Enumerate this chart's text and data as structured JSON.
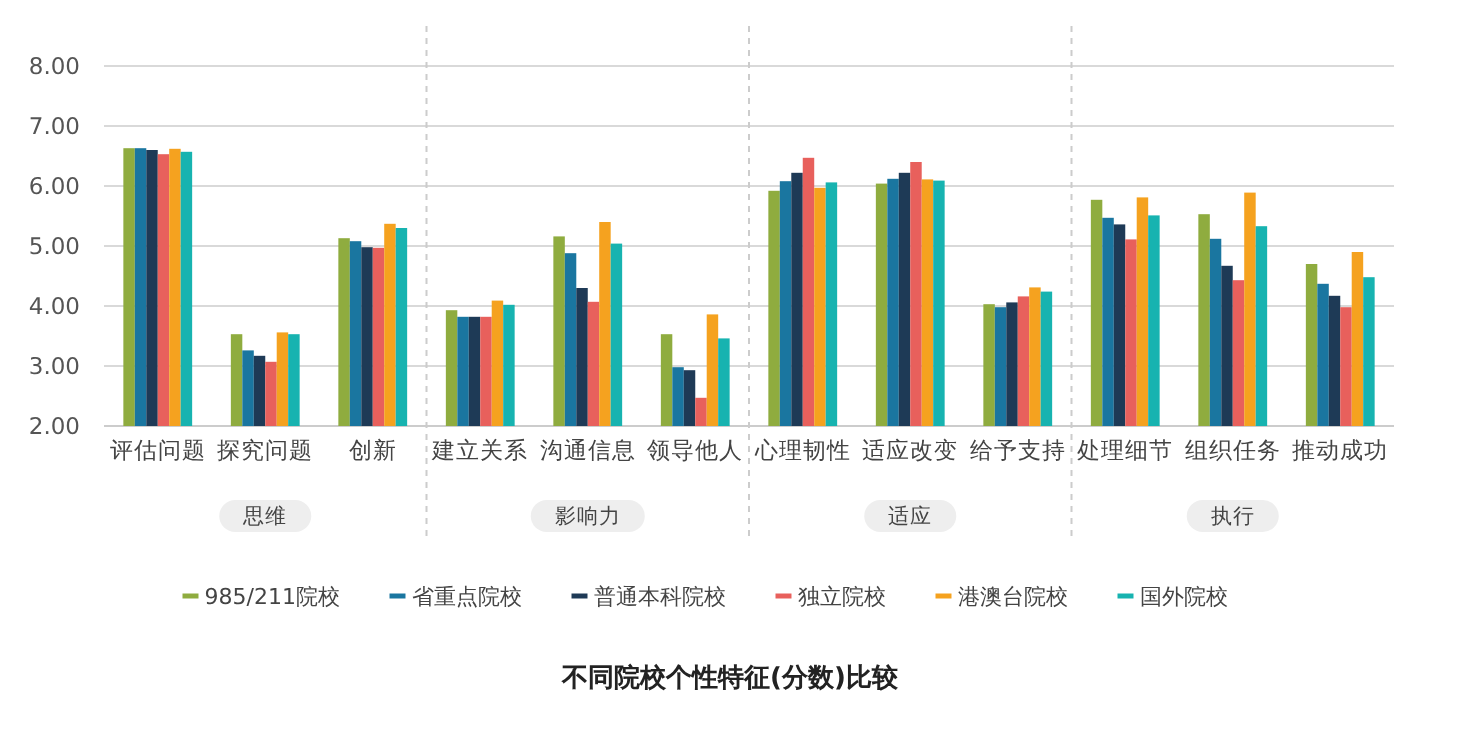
{
  "chart_data": {
    "type": "bar",
    "title": "不同院校个性特征(分数)比较",
    "categories": [
      "评估问题",
      "探究问题",
      "创新",
      "建立关系",
      "沟通信息",
      "领导他人",
      "心理韧性",
      "适应改变",
      "给予支持",
      "处理细节",
      "组织任务",
      "推动成功"
    ],
    "series": [
      {
        "name": "985/211院校",
        "color": "#8fac3f",
        "values": [
          6.63,
          3.53,
          5.13,
          3.93,
          5.16,
          3.53,
          5.92,
          6.04,
          4.03,
          5.77,
          5.53,
          4.7
        ]
      },
      {
        "name": "省重点院校",
        "color": "#1a76a0",
        "values": [
          6.63,
          3.26,
          5.08,
          3.82,
          4.88,
          2.98,
          6.08,
          6.12,
          3.98,
          5.47,
          5.12,
          4.37
        ]
      },
      {
        "name": "普通本科院校",
        "color": "#1e3a56",
        "values": [
          6.6,
          3.17,
          4.98,
          3.82,
          4.3,
          2.93,
          6.22,
          6.22,
          4.06,
          5.36,
          4.67,
          4.17
        ]
      },
      {
        "name": "独立院校",
        "color": "#e8605c",
        "values": [
          6.53,
          3.07,
          4.97,
          3.82,
          4.07,
          2.47,
          6.47,
          6.4,
          4.16,
          5.11,
          4.43,
          3.98
        ]
      },
      {
        "name": "港澳台院校",
        "color": "#f5a21f",
        "values": [
          6.62,
          3.56,
          5.37,
          4.09,
          5.4,
          3.86,
          5.97,
          6.11,
          4.31,
          5.81,
          5.89,
          4.9
        ]
      },
      {
        "name": "国外院校",
        "color": "#17b3b0",
        "values": [
          6.57,
          3.53,
          5.3,
          4.02,
          5.04,
          3.46,
          6.06,
          6.09,
          4.24,
          5.51,
          5.33,
          4.48
        ]
      }
    ],
    "ylim": [
      2,
      8
    ],
    "yticks": [
      {
        "value": 2,
        "label": "2.00"
      },
      {
        "value": 3,
        "label": "3.00"
      },
      {
        "value": 4,
        "label": "4.00"
      },
      {
        "value": 5,
        "label": "5.00"
      },
      {
        "value": 6,
        "label": "6.00"
      },
      {
        "value": 7,
        "label": "7.00"
      },
      {
        "value": 8,
        "label": "8.00"
      }
    ],
    "grid": "y",
    "legend": "bottom",
    "annotations": [
      "思维",
      "影响力",
      "适应",
      "执行"
    ]
  }
}
